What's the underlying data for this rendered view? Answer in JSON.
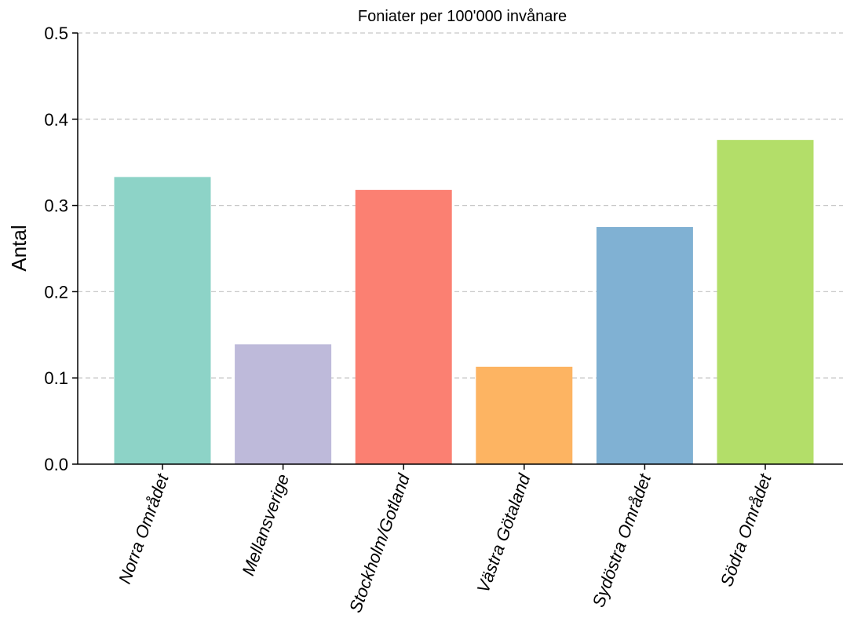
{
  "chart_data": {
    "type": "bar",
    "title": "Foniater per 100'000 invånare",
    "xlabel": "",
    "ylabel": "Antal",
    "categories": [
      "Norra Området",
      "Mellansverige",
      "Stockholm/Gotland",
      "Västra Götaland",
      "Sydöstra Området",
      "Södra Området"
    ],
    "values": [
      0.333,
      0.139,
      0.318,
      0.113,
      0.275,
      0.376
    ],
    "colors": [
      "#8dd3c7",
      "#bebada",
      "#fb8072",
      "#fdb462",
      "#80b1d3",
      "#b3de69"
    ],
    "ylim": [
      0,
      0.5
    ],
    "yticks": [
      "0.0",
      "0.1",
      "0.2",
      "0.3",
      "0.4",
      "0.5"
    ],
    "grid": true,
    "grid_axis": "y",
    "legend": "none"
  }
}
